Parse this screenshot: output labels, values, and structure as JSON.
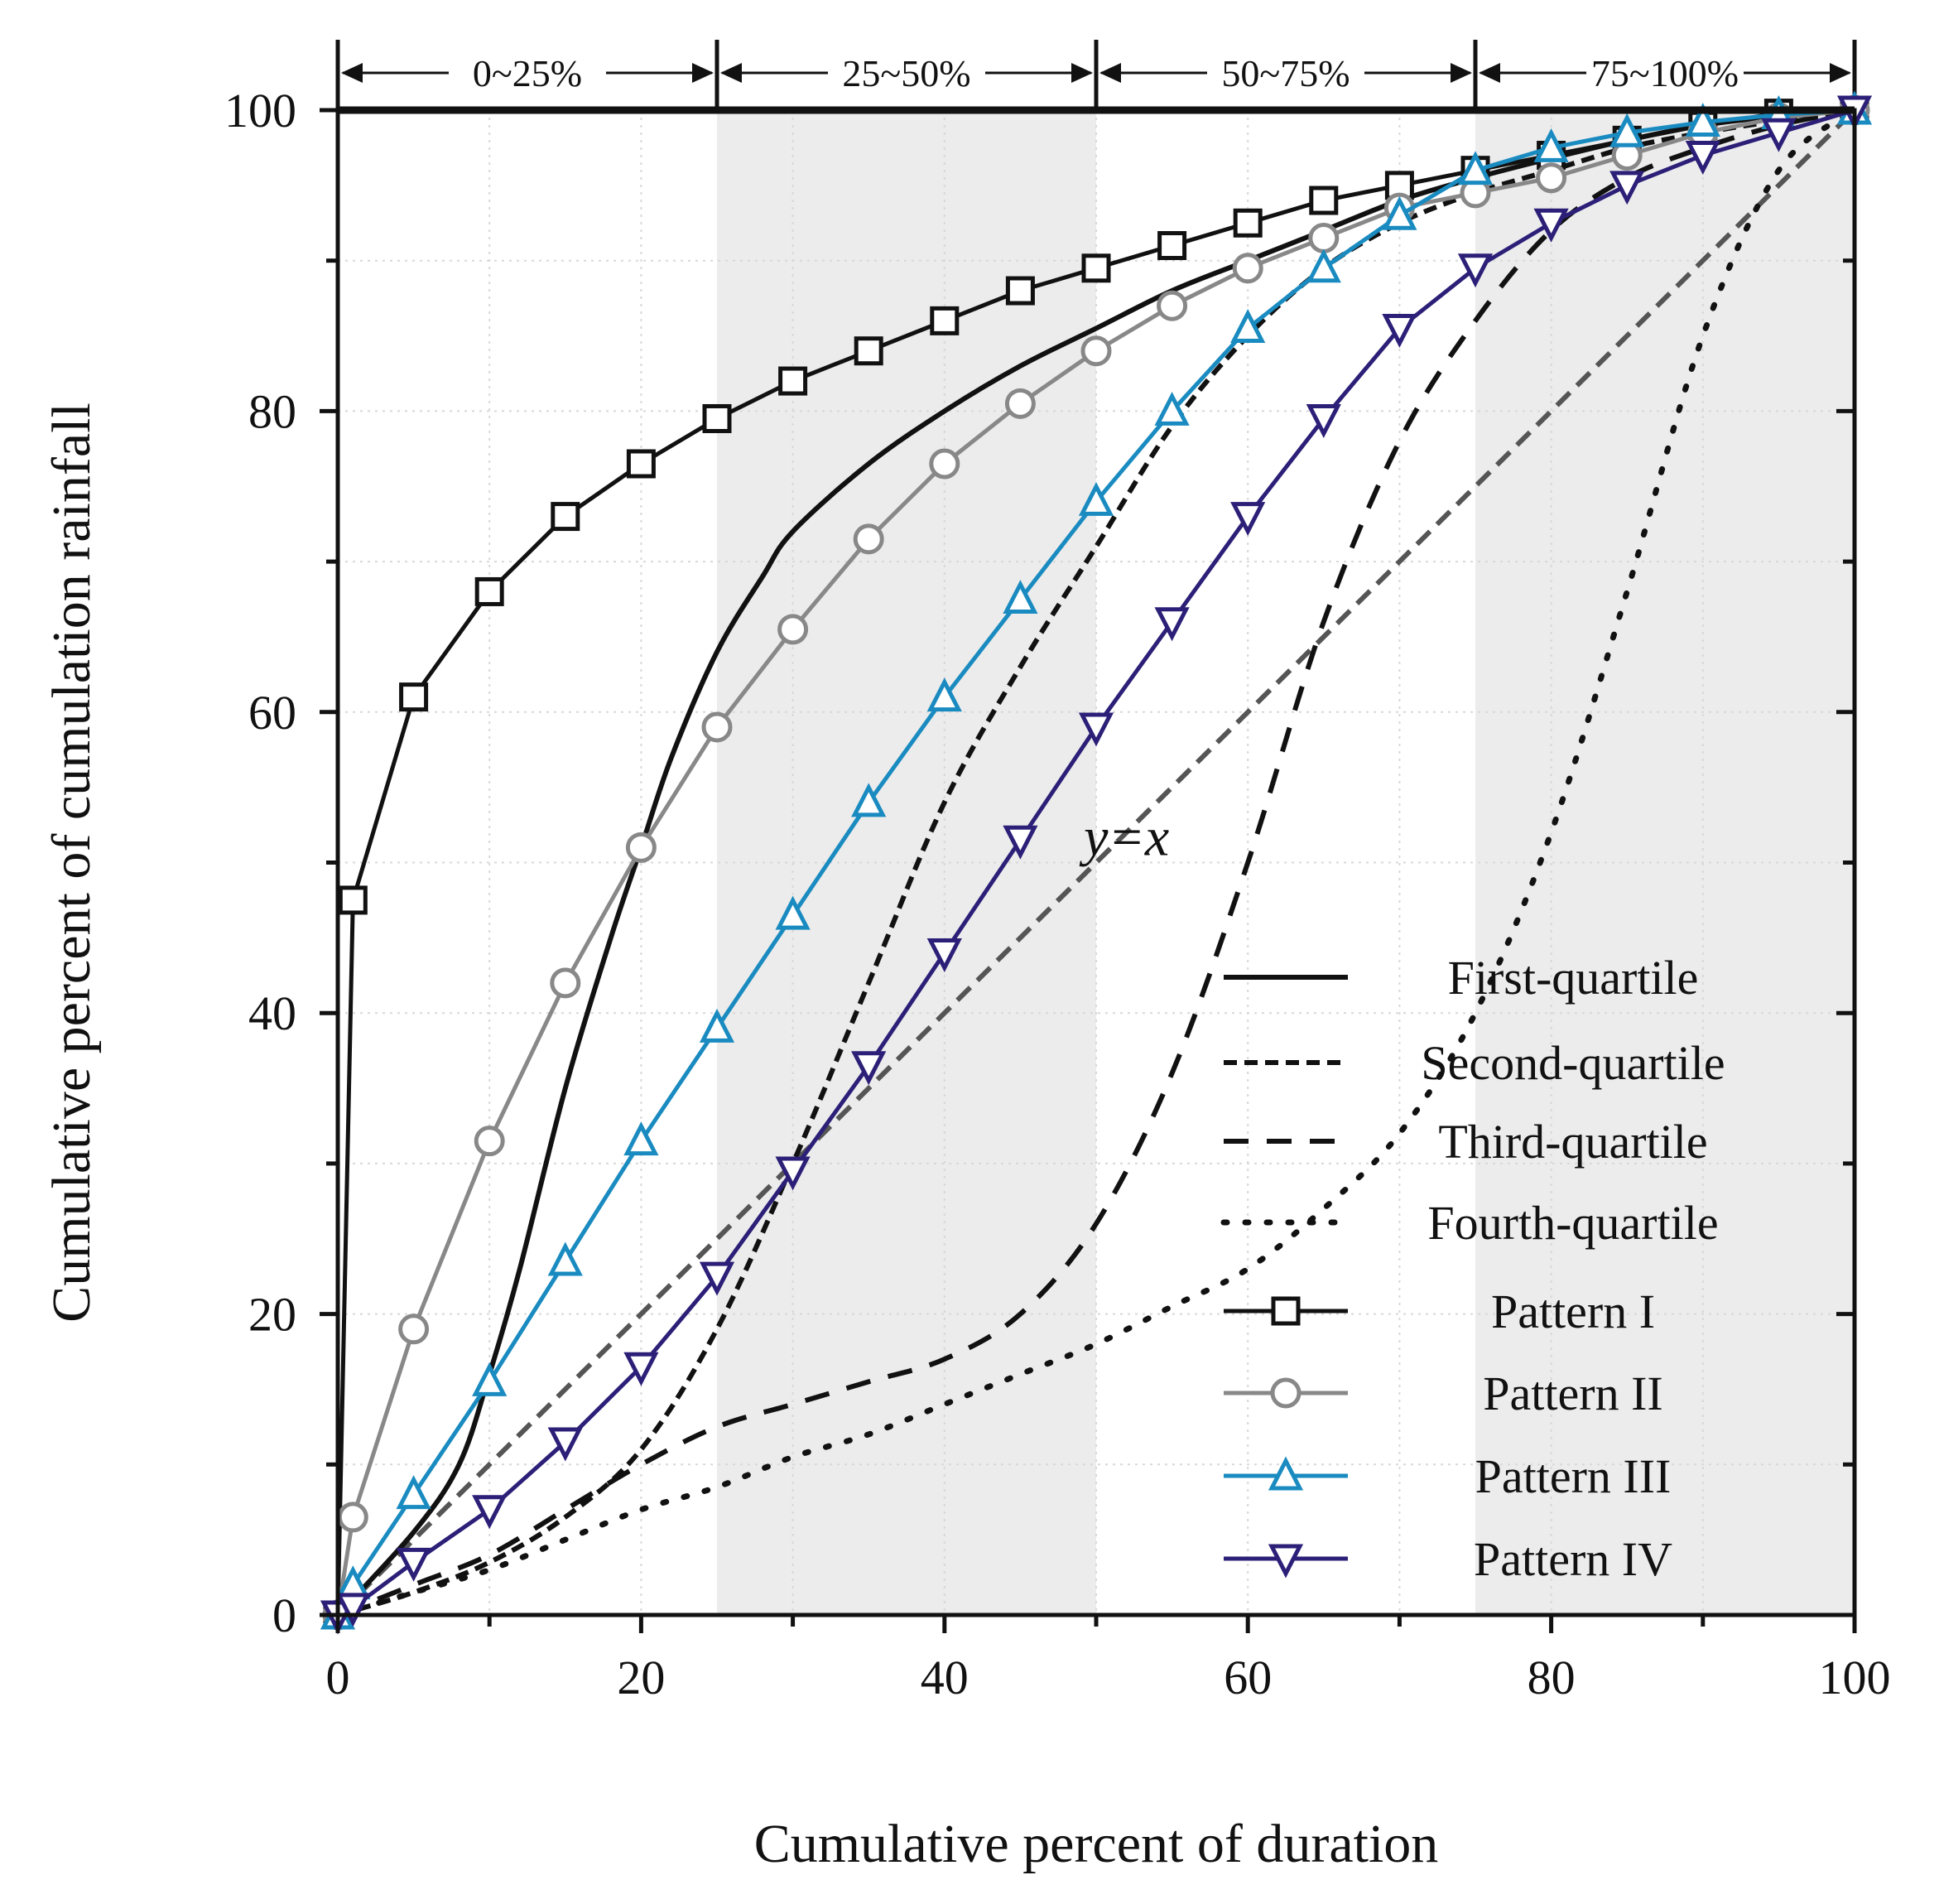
{
  "chart_data": {
    "type": "line",
    "xlabel": "Cumulative percent of duration",
    "ylabel": "Cumulative percent of cumulation rainfall",
    "xlim": [
      0,
      100
    ],
    "ylim": [
      0,
      100
    ],
    "xticks": [
      "0",
      "20",
      "40",
      "60",
      "80",
      "100"
    ],
    "yticks": [
      "0",
      "20",
      "40",
      "60",
      "80",
      "100"
    ],
    "grid": true,
    "legend_position": "bottom-right",
    "quartile_bands": [
      {
        "label": "0~25%",
        "from": 0,
        "to": 25,
        "shaded": false
      },
      {
        "label": "25~50%",
        "from": 25,
        "to": 50,
        "shaded": true
      },
      {
        "label": "50~75%",
        "from": 50,
        "to": 75,
        "shaded": false
      },
      {
        "label": "75~100%",
        "from": 75,
        "to": 100,
        "shaded": true
      }
    ],
    "annotation": "y=x",
    "reference_line": {
      "name": "y=x",
      "x": [
        0,
        100
      ],
      "y": [
        0,
        100
      ],
      "color": "#555555"
    },
    "series": [
      {
        "name": "First-quartile",
        "style": "solid",
        "color": "#111111",
        "x": [
          0,
          5,
          8,
          10,
          12,
          15,
          18,
          20,
          22,
          25,
          28,
          30,
          35,
          40,
          45,
          50,
          55,
          60,
          65,
          70,
          75,
          80,
          85,
          90,
          95,
          100
        ],
        "y": [
          0,
          5.5,
          10,
          16,
          23,
          35,
          45,
          51,
          57,
          64,
          69,
          72,
          76.5,
          80,
          83,
          85.5,
          88,
          90,
          92,
          94,
          95.5,
          96.8,
          98,
          99,
          99.6,
          100
        ]
      },
      {
        "name": "Second-quartile",
        "style": "dash-short",
        "color": "#111111",
        "x": [
          0,
          5,
          10,
          15,
          20,
          25,
          30,
          35,
          40,
          45,
          50,
          55,
          60,
          65,
          70,
          75,
          80,
          85,
          90,
          95,
          100
        ],
        "y": [
          0,
          1.5,
          3.5,
          6.5,
          11,
          19,
          30,
          42,
          54,
          63,
          71,
          79,
          85,
          89.5,
          92.5,
          94.5,
          96,
          97.5,
          98.5,
          99.3,
          100
        ]
      },
      {
        "name": "Third-quartile",
        "style": "dash-long",
        "color": "#111111",
        "x": [
          0,
          5,
          10,
          15,
          20,
          25,
          30,
          35,
          40,
          45,
          50,
          55,
          60,
          65,
          70,
          75,
          80,
          85,
          90,
          95,
          100
        ],
        "y": [
          0,
          2,
          4,
          7,
          10,
          12.5,
          14,
          15.5,
          17,
          20,
          26,
          36,
          50,
          66,
          78,
          86,
          92,
          95.5,
          97.5,
          99,
          100
        ]
      },
      {
        "name": "Fourth-quartile",
        "style": "dotted",
        "color": "#111111",
        "x": [
          0,
          5,
          10,
          15,
          20,
          25,
          30,
          35,
          40,
          45,
          50,
          55,
          60,
          65,
          70,
          75,
          80,
          85,
          90,
          95,
          100
        ],
        "y": [
          0,
          1.5,
          3,
          5,
          7,
          8.5,
          10.5,
          12,
          14,
          16,
          18,
          20.5,
          23,
          27,
          32,
          40,
          52,
          68,
          85,
          96,
          100
        ]
      },
      {
        "name": "Pattern I",
        "style": "solid",
        "marker": "square",
        "color": "#111111",
        "x": [
          0,
          1,
          5,
          10,
          15,
          20,
          25,
          30,
          35,
          40,
          45,
          50,
          55,
          60,
          65,
          70,
          75,
          80,
          85,
          90,
          95,
          100
        ],
        "y": [
          0,
          47.5,
          61,
          68,
          73,
          76.5,
          79.5,
          82,
          84,
          86,
          88,
          89.5,
          91,
          92.5,
          94,
          95,
          96,
          97,
          98,
          99,
          99.8,
          100
        ]
      },
      {
        "name": "Pattern II",
        "style": "solid",
        "marker": "circle",
        "color": "#888888",
        "x": [
          0,
          1,
          5,
          10,
          15,
          20,
          25,
          30,
          35,
          40,
          45,
          50,
          55,
          60,
          65,
          70,
          75,
          80,
          85,
          90,
          95,
          100
        ],
        "y": [
          0,
          6.5,
          19,
          31.5,
          42,
          51,
          59,
          65.5,
          71.5,
          76.5,
          80.5,
          84,
          87,
          89.5,
          91.5,
          93.5,
          94.5,
          95.5,
          97,
          98.5,
          99.5,
          100
        ]
      },
      {
        "name": "Pattern III",
        "style": "solid",
        "marker": "triangle-up",
        "color": "#1a8bc0",
        "x": [
          0,
          1,
          5,
          10,
          15,
          20,
          25,
          30,
          35,
          40,
          45,
          50,
          55,
          60,
          65,
          70,
          75,
          80,
          85,
          90,
          95,
          100
        ],
        "y": [
          0,
          2,
          8,
          15.5,
          23.5,
          31.5,
          39,
          46.5,
          54,
          61,
          67.5,
          74,
          80,
          85.5,
          89.5,
          93,
          96,
          97.5,
          98.5,
          99.2,
          99.7,
          100
        ]
      },
      {
        "name": "Pattern IV",
        "style": "solid",
        "marker": "triangle-down",
        "color": "#2c1f78",
        "x": [
          0,
          1,
          5,
          10,
          15,
          20,
          25,
          30,
          35,
          40,
          45,
          50,
          55,
          60,
          65,
          70,
          75,
          80,
          85,
          90,
          95,
          100
        ],
        "y": [
          0,
          0.5,
          3.5,
          7,
          11.5,
          16.5,
          22.5,
          29.5,
          36.5,
          44,
          51.5,
          59,
          66,
          73,
          79.5,
          85.5,
          89.5,
          92.5,
          95,
          97,
          98.5,
          100
        ]
      }
    ]
  }
}
